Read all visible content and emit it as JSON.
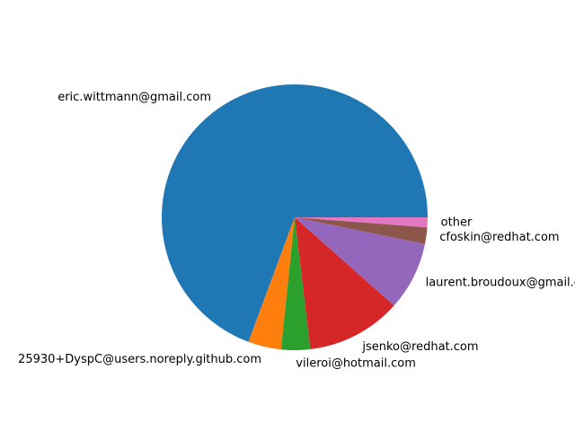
{
  "chart_data": {
    "type": "pie",
    "title": "",
    "slices": [
      {
        "label": "eric.wittmann@gmail.com",
        "value": 69.0,
        "color": "#1f77b4"
      },
      {
        "label": "25930+DyspC@users.noreply.github.com",
        "value": 4.0,
        "color": "#ff7f0e"
      },
      {
        "label": "vileroi@hotmail.com",
        "value": 3.5,
        "color": "#2ca02c"
      },
      {
        "label": "jsenko@redhat.com",
        "value": 11.5,
        "color": "#d62728"
      },
      {
        "label": "laurent.broudoux@gmail.com",
        "value": 8.3,
        "color": "#9467bd"
      },
      {
        "label": "cfoskin@redhat.com",
        "value": 2.0,
        "color": "#8c564b"
      },
      {
        "label": "other",
        "value": 1.2,
        "color": "#e377c2"
      }
    ],
    "start_angle_deg": 0,
    "direction": "counterclockwise",
    "legend": "none"
  }
}
